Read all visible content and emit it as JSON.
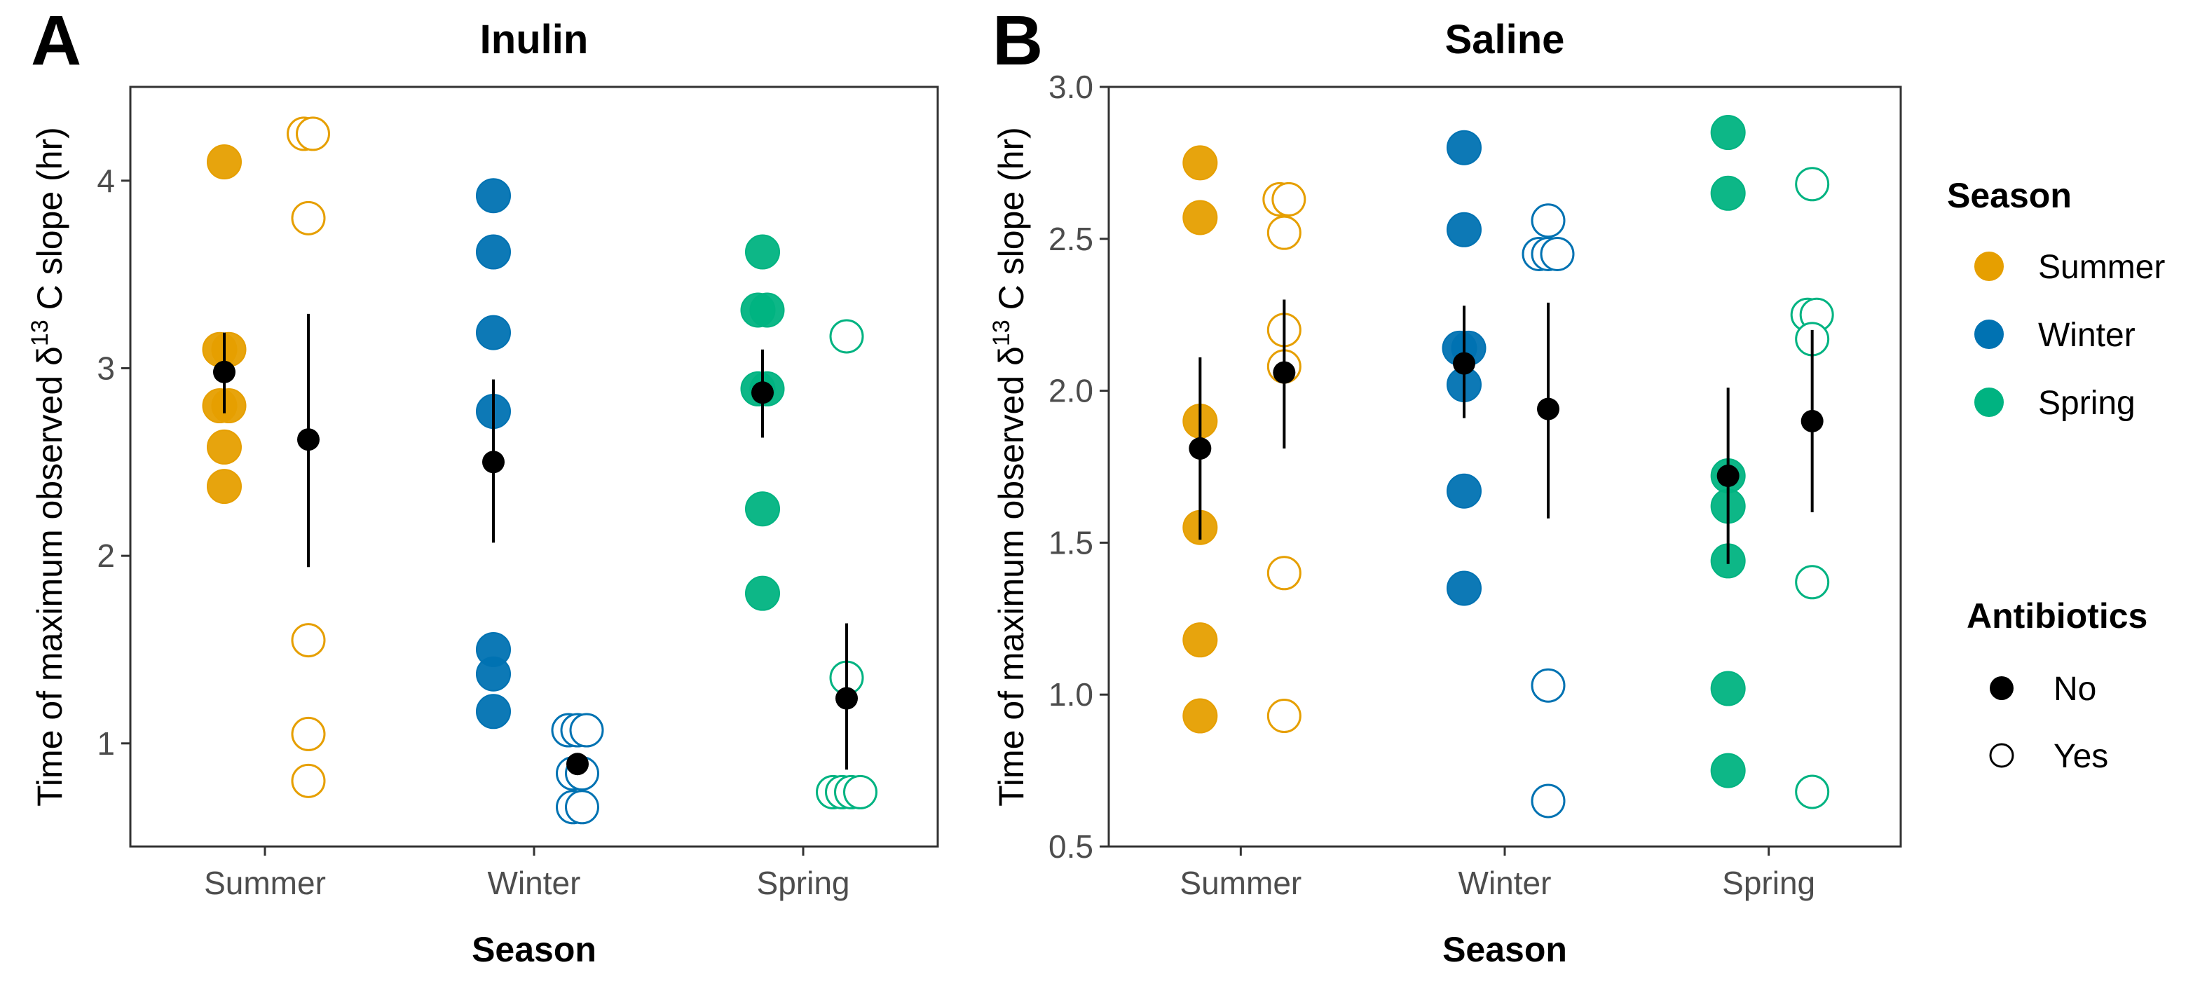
{
  "figure": {
    "legend": {
      "season_title": "Season",
      "season_items": [
        {
          "label": "Summer",
          "color": "#E69F00"
        },
        {
          "label": "Winter",
          "color": "#0072B2"
        },
        {
          "label": "Spring",
          "color": "#00B381"
        }
      ],
      "antibiotics_title": "Antibiotics",
      "antibiotics_items": [
        {
          "label": "No",
          "fill": "filled"
        },
        {
          "label": "Yes",
          "fill": "hollow"
        }
      ]
    }
  },
  "chart_data": [
    {
      "type": "scatter",
      "panel": "A",
      "title": "Inulin",
      "xlabel": "Season",
      "ylabel_parts": [
        "Time of maximum observed  ",
        "δ",
        "13",
        " C slope (hr)"
      ],
      "categories": [
        "Summer",
        "Winter",
        "Spring"
      ],
      "ylim": [
        0.45,
        4.5
      ],
      "yticks": [
        1,
        2,
        3,
        4
      ],
      "ytick_labels": [
        "1",
        "2",
        "3",
        "4"
      ],
      "points": [
        {
          "season": "Summer",
          "antibiotics": "No",
          "values": [
            4.1,
            3.1,
            3.1,
            2.8,
            2.8,
            2.58,
            2.37
          ]
        },
        {
          "season": "Summer",
          "antibiotics": "Yes",
          "values": [
            4.25,
            4.25,
            3.8,
            1.55,
            1.05,
            0.8
          ]
        },
        {
          "season": "Winter",
          "antibiotics": "No",
          "values": [
            3.92,
            3.62,
            3.19,
            2.77,
            1.5,
            1.37,
            1.17
          ]
        },
        {
          "season": "Winter",
          "antibiotics": "Yes",
          "values": [
            1.07,
            1.07,
            1.07,
            0.84,
            0.84,
            0.66,
            0.66
          ]
        },
        {
          "season": "Spring",
          "antibiotics": "No",
          "values": [
            3.62,
            3.31,
            3.31,
            2.89,
            2.89,
            2.25,
            1.8
          ]
        },
        {
          "season": "Spring",
          "antibiotics": "Yes",
          "values": [
            3.17,
            1.35,
            0.74,
            0.74,
            0.74,
            0.74
          ]
        }
      ],
      "summary": [
        {
          "season": "Summer",
          "antibiotics": "No",
          "mean": 2.98,
          "lower": 2.76,
          "upper": 3.19
        },
        {
          "season": "Summer",
          "antibiotics": "Yes",
          "mean": 2.62,
          "lower": 1.94,
          "upper": 3.29
        },
        {
          "season": "Winter",
          "antibiotics": "No",
          "mean": 2.5,
          "lower": 2.07,
          "upper": 2.94
        },
        {
          "season": "Winter",
          "antibiotics": "Yes",
          "mean": 0.89,
          "lower": 0.89,
          "upper": 0.89
        },
        {
          "season": "Spring",
          "antibiotics": "No",
          "mean": 2.87,
          "lower": 2.63,
          "upper": 3.1
        },
        {
          "season": "Spring",
          "antibiotics": "Yes",
          "mean": 1.24,
          "lower": 0.86,
          "upper": 1.64
        }
      ]
    },
    {
      "type": "scatter",
      "panel": "B",
      "title": "Saline",
      "xlabel": "Season",
      "ylabel_parts": [
        "Time of maximum observed  ",
        "δ",
        "13",
        " C slope (hr)"
      ],
      "categories": [
        "Summer",
        "Winter",
        "Spring"
      ],
      "ylim": [
        0.5,
        3.0
      ],
      "yticks": [
        0.5,
        1.0,
        1.5,
        2.0,
        2.5,
        3.0
      ],
      "ytick_labels": [
        "0.5",
        "1.0",
        "1.5",
        "2.0",
        "2.5",
        "3.0"
      ],
      "points": [
        {
          "season": "Summer",
          "antibiotics": "No",
          "values": [
            2.75,
            2.57,
            1.9,
            1.55,
            1.18,
            0.93
          ]
        },
        {
          "season": "Summer",
          "antibiotics": "Yes",
          "values": [
            2.63,
            2.63,
            2.52,
            2.2,
            2.08,
            1.4,
            0.93
          ]
        },
        {
          "season": "Winter",
          "antibiotics": "No",
          "values": [
            2.8,
            2.53,
            2.14,
            2.14,
            2.02,
            1.67,
            1.35
          ]
        },
        {
          "season": "Winter",
          "antibiotics": "Yes",
          "values": [
            2.56,
            2.45,
            2.45,
            2.45,
            1.03,
            0.65
          ]
        },
        {
          "season": "Spring",
          "antibiotics": "No",
          "values": [
            2.85,
            2.65,
            1.72,
            1.62,
            1.44,
            1.02,
            0.75
          ]
        },
        {
          "season": "Spring",
          "antibiotics": "Yes",
          "values": [
            2.68,
            2.25,
            2.25,
            2.17,
            1.37,
            0.68
          ]
        }
      ],
      "summary": [
        {
          "season": "Summer",
          "antibiotics": "No",
          "mean": 1.81,
          "lower": 1.51,
          "upper": 2.11
        },
        {
          "season": "Summer",
          "antibiotics": "Yes",
          "mean": 2.06,
          "lower": 1.81,
          "upper": 2.3
        },
        {
          "season": "Winter",
          "antibiotics": "No",
          "mean": 2.09,
          "lower": 1.91,
          "upper": 2.28
        },
        {
          "season": "Winter",
          "antibiotics": "Yes",
          "mean": 1.94,
          "lower": 1.58,
          "upper": 2.29
        },
        {
          "season": "Spring",
          "antibiotics": "No",
          "mean": 1.72,
          "lower": 1.43,
          "upper": 2.01
        },
        {
          "season": "Spring",
          "antibiotics": "Yes",
          "mean": 1.9,
          "lower": 1.6,
          "upper": 2.2
        }
      ]
    }
  ]
}
